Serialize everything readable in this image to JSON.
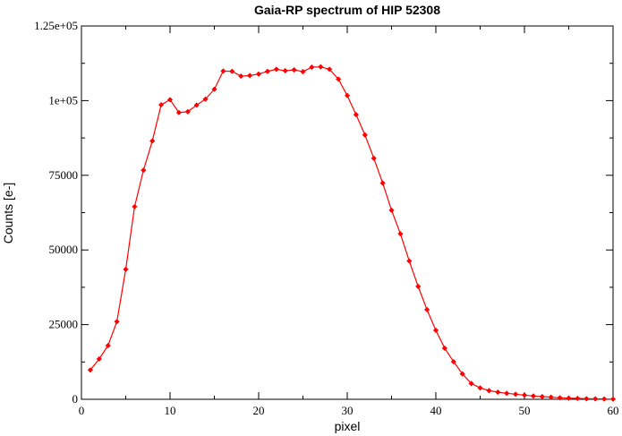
{
  "chart_data": {
    "type": "line",
    "title": "Gaia-RP spectrum of HIP 52308",
    "xlabel": "pixel",
    "ylabel": "Counts [e-]",
    "xlim": [
      0,
      60
    ],
    "ylim": [
      0,
      125000
    ],
    "xticks": [
      0,
      10,
      20,
      30,
      40,
      50,
      60
    ],
    "xtick_labels": [
      "0",
      "10",
      "20",
      "30",
      "40",
      "50",
      "60"
    ],
    "yticks": [
      0,
      25000,
      50000,
      75000,
      100000,
      125000
    ],
    "ytick_labels": [
      "0",
      "25000",
      "50000",
      "75000",
      "1e+05",
      "1.25e+05"
    ],
    "grid": false,
    "legend": false,
    "series_color": "#ff0000",
    "series": [
      {
        "x": [
          1,
          2,
          3,
          4,
          5,
          6,
          7,
          8,
          9,
          10,
          11,
          12,
          13,
          14,
          15,
          16,
          17,
          18,
          19,
          20,
          21,
          22,
          23,
          24,
          25,
          26,
          27,
          28,
          29,
          30,
          31,
          32,
          33,
          34,
          35,
          36,
          37,
          38,
          39,
          40,
          41,
          42,
          43,
          44,
          45,
          46,
          47,
          48,
          49,
          50,
          51,
          52,
          53,
          54,
          55,
          56,
          57,
          58,
          59,
          60
        ],
        "values": [
          9800,
          13500,
          18000,
          26000,
          43500,
          64500,
          76700,
          86500,
          98600,
          100300,
          96000,
          96300,
          98500,
          100500,
          103800,
          109900,
          109800,
          108200,
          108400,
          108900,
          109800,
          110500,
          110000,
          110300,
          109700,
          111200,
          111300,
          110500,
          107200,
          101700,
          95300,
          88500,
          80700,
          72400,
          63300,
          55400,
          46300,
          37800,
          30000,
          23100,
          17100,
          12600,
          8500,
          5300,
          3800,
          2900,
          2400,
          2000,
          1700,
          1400,
          1100,
          900,
          700,
          500,
          400,
          300,
          200,
          150,
          100,
          60
        ]
      }
    ]
  }
}
